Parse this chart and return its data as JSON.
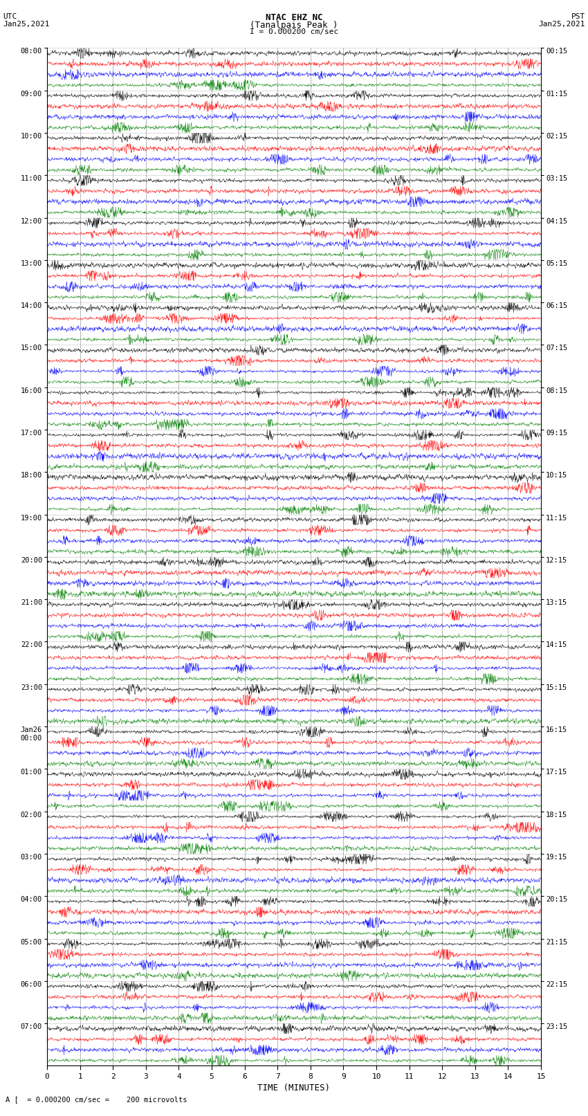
{
  "title_line1": "NTAC EHZ NC",
  "title_line2": "(Tanalpais Peak )",
  "title_line3": "I = 0.000200 cm/sec",
  "left_label_top": "UTC",
  "left_label_date": "Jan25,2021",
  "right_label_top": "PST",
  "right_label_date": "Jan25,2021",
  "xlabel": "TIME (MINUTES)",
  "bottom_note": "A [  = 0.000200 cm/sec =    200 microvolts",
  "utc_times": [
    "08:00",
    "09:00",
    "10:00",
    "11:00",
    "12:00",
    "13:00",
    "14:00",
    "15:00",
    "16:00",
    "17:00",
    "18:00",
    "19:00",
    "20:00",
    "21:00",
    "22:00",
    "23:00",
    "Jan26\n00:00",
    "01:00",
    "02:00",
    "03:00",
    "04:00",
    "05:00",
    "06:00",
    "07:00"
  ],
  "pst_times": [
    "00:15",
    "01:15",
    "02:15",
    "03:15",
    "04:15",
    "05:15",
    "06:15",
    "07:15",
    "08:15",
    "09:15",
    "10:15",
    "11:15",
    "12:15",
    "13:15",
    "14:15",
    "15:15",
    "16:15",
    "17:15",
    "18:15",
    "19:15",
    "20:15",
    "21:15",
    "22:15",
    "23:15"
  ],
  "n_rows": 24,
  "n_traces_per_row": 4,
  "trace_colors": [
    "black",
    "red",
    "blue",
    "green"
  ],
  "x_min": 0,
  "x_max": 15,
  "bg_color": "white",
  "grid_color": "#888888",
  "figsize": [
    8.5,
    16.13
  ],
  "dpi": 100,
  "seed": 42
}
